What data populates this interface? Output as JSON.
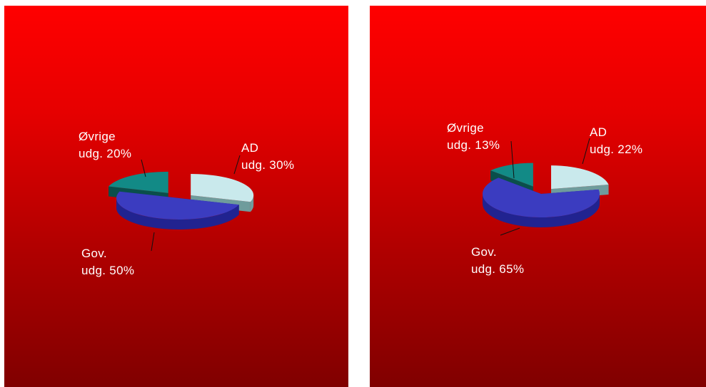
{
  "chart_data": [
    {
      "type": "pie",
      "title": "",
      "slices": [
        {
          "name_line1": "AD",
          "name_line2": "udg. 30%",
          "value": 30,
          "color": "#c9e9ec",
          "side": "#6f9c9c"
        },
        {
          "name_line1": "Gov.",
          "name_line2": "udg. 50%",
          "value": 50,
          "color": "#3b3cc0",
          "side": "#212390"
        },
        {
          "name_line1": "Øvrige",
          "name_line2": "udg. 20%",
          "value": 20,
          "color": "#128a86",
          "side": "#0a4f4b"
        }
      ]
    },
    {
      "type": "pie",
      "title": "",
      "slices": [
        {
          "name_line1": "AD",
          "name_line2": "udg. 22%",
          "value": 22,
          "color": "#c9e9ec",
          "side": "#6f9c9c"
        },
        {
          "name_line1": "Gov.",
          "name_line2": "udg. 65%",
          "value": 65,
          "color": "#3b3cc0",
          "side": "#212390"
        },
        {
          "name_line1": "Øvrige",
          "name_line2": "udg. 13%",
          "value": 13,
          "color": "#128a86",
          "side": "#0a4f4b"
        }
      ]
    }
  ],
  "colors": {
    "background_top": "#ff0000",
    "background_bottom": "#800000",
    "label_text": "#ffffff"
  }
}
